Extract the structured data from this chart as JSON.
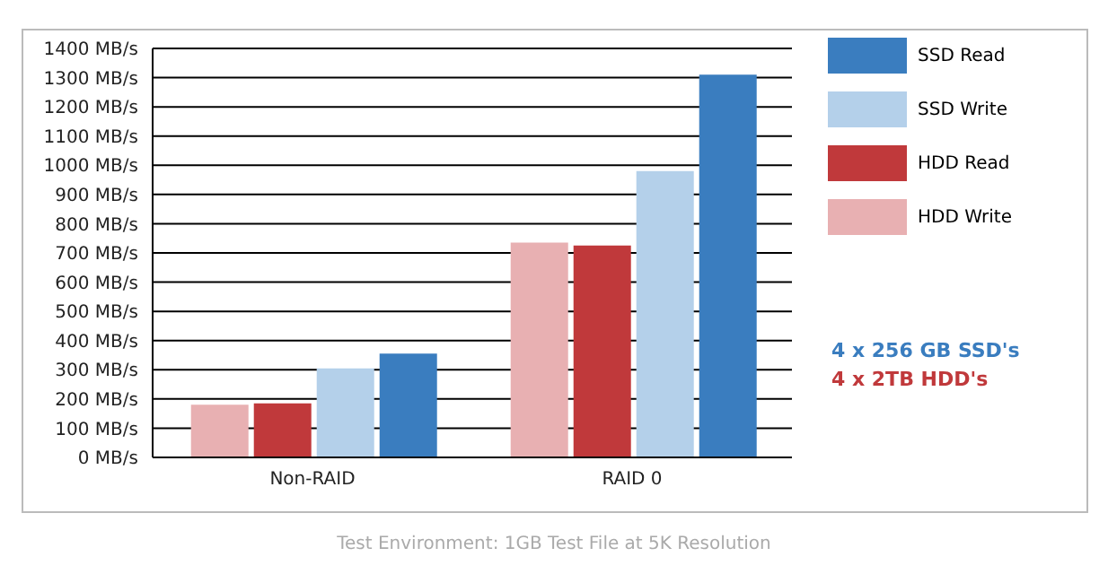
{
  "chart_data": {
    "type": "bar",
    "categories": [
      "Non-RAID",
      "RAID 0"
    ],
    "series": [
      {
        "name": "HDD Write",
        "color": "#e8b0b2",
        "values": [
          180,
          735
        ]
      },
      {
        "name": "HDD Read",
        "color": "#c0393b",
        "values": [
          185,
          725
        ]
      },
      {
        "name": "SSD Write",
        "color": "#b4d0ea",
        "values": [
          305,
          980
        ]
      },
      {
        "name": "SSD Read",
        "color": "#3a7dbf",
        "values": [
          355,
          1310
        ]
      }
    ],
    "ylim": [
      0,
      1400
    ],
    "yticks": [
      {
        "value": 0,
        "label": "0 MB/s"
      },
      {
        "value": 100,
        "label": "100 MB/s"
      },
      {
        "value": 200,
        "label": "200 MB/s"
      },
      {
        "value": 300,
        "label": "300 MB/s"
      },
      {
        "value": 400,
        "label": "400 MB/s"
      },
      {
        "value": 500,
        "label": "500 MB/s"
      },
      {
        "value": 600,
        "label": "600 MB/s"
      },
      {
        "value": 700,
        "label": "700 MB/s"
      },
      {
        "value": 800,
        "label": "800 MB/s"
      },
      {
        "value": 900,
        "label": "900 MB/s"
      },
      {
        "value": 1000,
        "label": "1000 MB/s"
      },
      {
        "value": 1100,
        "label": "1100 MB/s"
      },
      {
        "value": 1200,
        "label": "1200 MB/s"
      },
      {
        "value": 1300,
        "label": "1300 MB/s"
      },
      {
        "value": 1400,
        "label": "1400 MB/s"
      }
    ],
    "grid": "y",
    "legend": "right",
    "annotations": [
      "4 x 256 GB SSD's",
      "4 x 2TB HDD's",
      "Test Environment: 1GB Test File at 5K Resolution"
    ]
  }
}
